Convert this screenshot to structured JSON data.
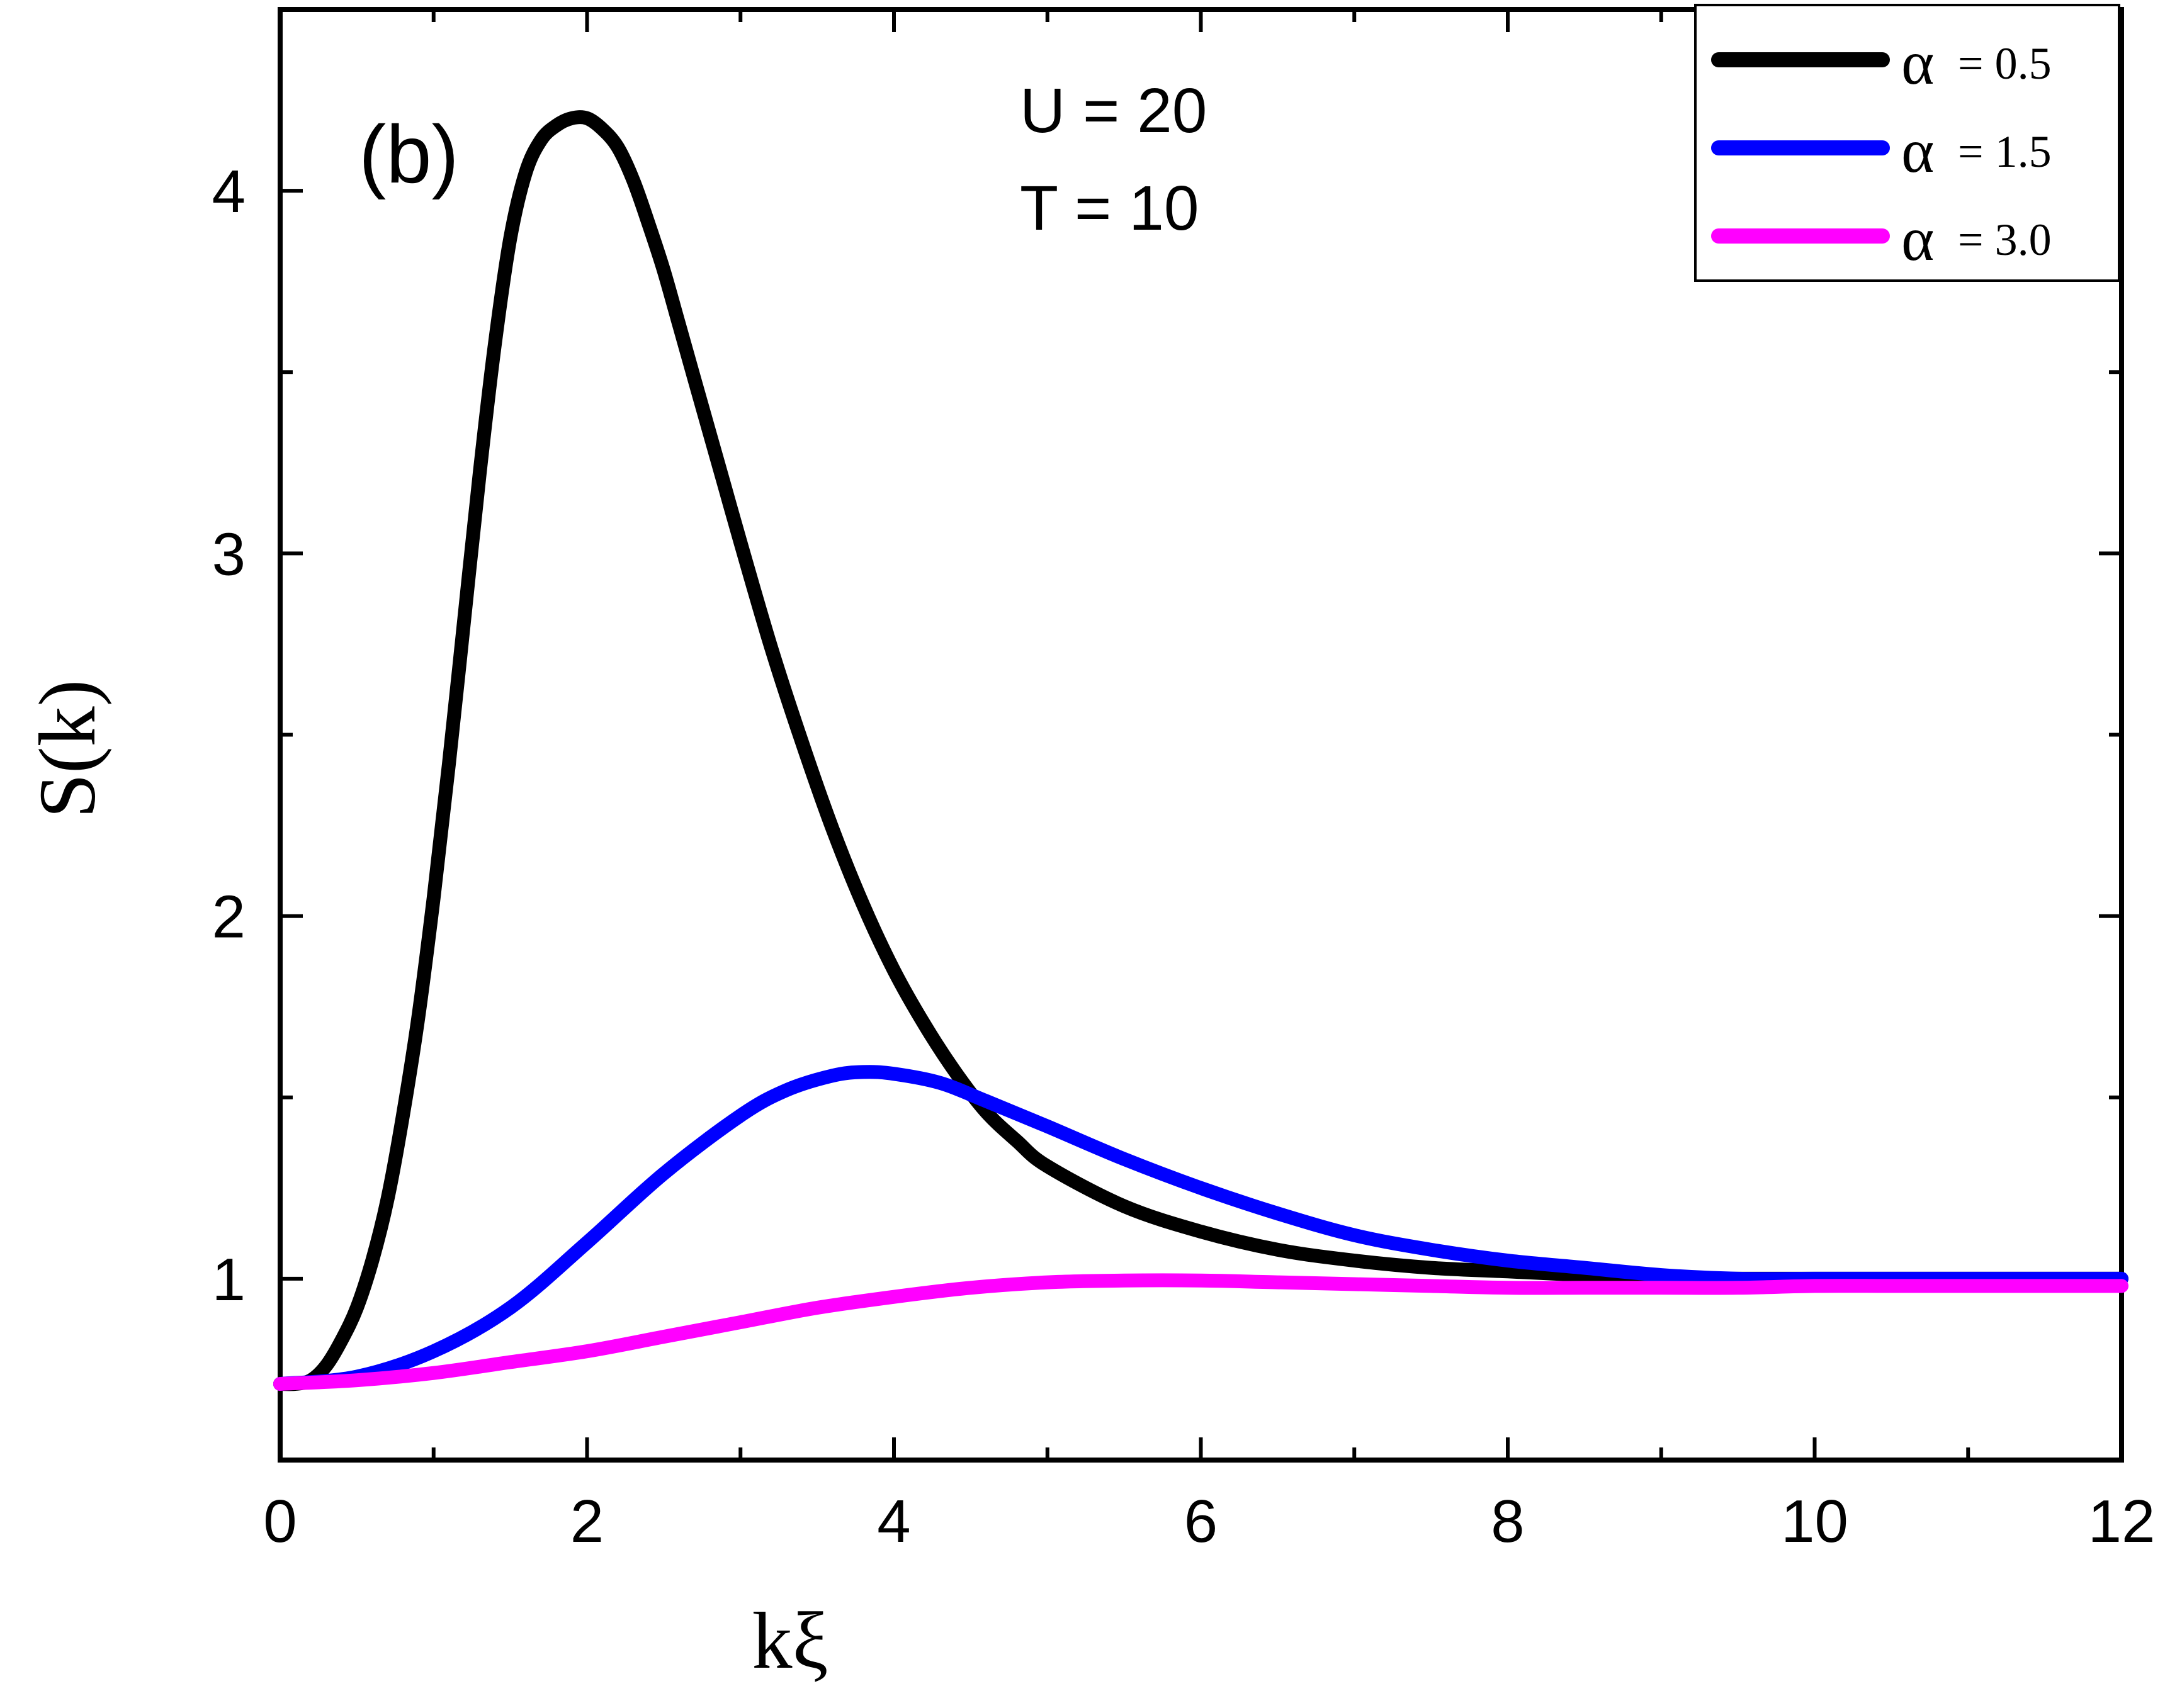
{
  "chart_data": {
    "type": "line",
    "panel_label": "(b)",
    "xlabel": "kξ",
    "ylabel": "S(k)",
    "xlim": [
      0,
      12
    ],
    "ylim": [
      0.5,
      4.5
    ],
    "x_ticks": [
      0,
      2,
      4,
      6,
      8,
      10,
      12
    ],
    "y_ticks": [
      1,
      2,
      3,
      4
    ],
    "annotations": [
      "U  = 20",
      "T  = 10"
    ],
    "legend_position": "top-right",
    "series": [
      {
        "name": "α = 0.5",
        "symbol": "α",
        "value_text": "= 0.5",
        "color": "#000000",
        "x": [
          0,
          0.1,
          0.2,
          0.3,
          0.4,
          0.5,
          0.6,
          0.7,
          0.8,
          0.9,
          1.0,
          1.1,
          1.2,
          1.3,
          1.4,
          1.5,
          1.6,
          1.7,
          1.8,
          1.9,
          2.0,
          2.1,
          2.2,
          2.3,
          2.4,
          2.5,
          2.6,
          2.7,
          2.8,
          2.9,
          3.0,
          3.2,
          3.4,
          3.6,
          3.8,
          4.0,
          4.2,
          4.4,
          4.6,
          4.8,
          5.0,
          5.5,
          6.0,
          6.5,
          7.0,
          7.5,
          8.0,
          8.5,
          9.0,
          9.5,
          10.0,
          10.5,
          11.0,
          11.5,
          12.0
        ],
        "y": [
          0.71,
          0.71,
          0.72,
          0.76,
          0.83,
          0.92,
          1.05,
          1.22,
          1.45,
          1.72,
          2.05,
          2.42,
          2.82,
          3.22,
          3.58,
          3.87,
          4.05,
          4.14,
          4.18,
          4.2,
          4.2,
          4.17,
          4.12,
          4.03,
          3.91,
          3.78,
          3.63,
          3.48,
          3.33,
          3.18,
          3.03,
          2.74,
          2.48,
          2.24,
          2.03,
          1.85,
          1.7,
          1.57,
          1.46,
          1.38,
          1.31,
          1.2,
          1.13,
          1.08,
          1.05,
          1.03,
          1.02,
          1.01,
          1.0,
          1.0,
          1.0,
          1.0,
          1.0,
          1.0,
          1.0
        ]
      },
      {
        "name": "α = 1.5",
        "symbol": "α",
        "value_text": "= 1.5",
        "color": "#0000ff",
        "x": [
          0,
          0.5,
          1.0,
          1.5,
          2.0,
          2.5,
          3.0,
          3.3,
          3.6,
          3.8,
          4.0,
          4.3,
          4.6,
          5.0,
          5.5,
          6.0,
          6.5,
          7.0,
          7.5,
          8.0,
          8.5,
          9.0,
          9.5,
          10.0,
          10.5,
          11.0,
          11.5,
          12.0
        ],
        "y": [
          0.71,
          0.73,
          0.8,
          0.92,
          1.1,
          1.29,
          1.45,
          1.52,
          1.56,
          1.57,
          1.565,
          1.54,
          1.49,
          1.42,
          1.33,
          1.25,
          1.18,
          1.12,
          1.08,
          1.05,
          1.03,
          1.01,
          1.0,
          1.0,
          1.0,
          1.0,
          1.0,
          1.0
        ]
      },
      {
        "name": "α = 3.0",
        "symbol": "α",
        "value_text": "= 3.0",
        "color": "#ff00ff",
        "x": [
          0,
          0.5,
          1.0,
          1.5,
          2.0,
          2.5,
          3.0,
          3.5,
          4.0,
          4.5,
          5.0,
          5.5,
          6.0,
          6.5,
          7.0,
          7.5,
          8.0,
          8.5,
          9.0,
          9.5,
          10.0,
          10.5,
          11.0,
          11.5,
          12.0
        ],
        "y": [
          0.71,
          0.72,
          0.74,
          0.77,
          0.8,
          0.84,
          0.88,
          0.92,
          0.95,
          0.975,
          0.99,
          0.995,
          0.995,
          0.99,
          0.985,
          0.98,
          0.975,
          0.975,
          0.975,
          0.975,
          0.98,
          0.98,
          0.98,
          0.98,
          0.98
        ]
      }
    ]
  }
}
